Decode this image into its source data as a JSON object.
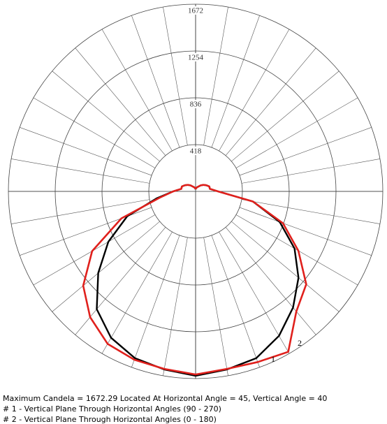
{
  "chart_data": {
    "type": "polar",
    "angles": [
      -180,
      -170,
      -160,
      -150,
      -140,
      -130,
      -120,
      -110,
      -100,
      -90,
      -80,
      -70,
      -60,
      -50,
      -40,
      -30,
      -20,
      -10,
      0,
      10,
      20,
      30,
      40,
      50,
      60,
      70,
      80,
      90,
      100,
      110,
      120,
      130,
      140,
      150,
      160,
      170,
      180
    ],
    "rlim": [
      0,
      1672
    ],
    "rticks": [
      418,
      836,
      1254,
      1672
    ],
    "series": [
      {
        "name": "1",
        "color": "#000000",
        "values": [
          20,
          30,
          40,
          50,
          70,
          90,
          110,
          130,
          130,
          200,
          350,
          650,
          900,
          1135,
          1373,
          1510,
          1585,
          1615,
          1647,
          1615,
          1585,
          1490,
          1354,
          1200,
          1020,
          800,
          520,
          200,
          130,
          130,
          110,
          90,
          70,
          50,
          40,
          30,
          20
        ]
      },
      {
        "name": "2",
        "color": "#e0201c",
        "values": [
          20,
          30,
          40,
          50,
          70,
          90,
          110,
          130,
          130,
          200,
          325,
          705,
          1067,
          1310,
          1466,
          1572,
          1600,
          1610,
          1635,
          1610,
          1622,
          1655,
          1400,
          1290,
          1060,
          830,
          520,
          200,
          130,
          130,
          110,
          90,
          70,
          50,
          40,
          30,
          20
        ]
      }
    ],
    "notes": [
      "Maximum Candela = 1672.29   Located At Horizontal Angle = 45, Vertical Angle = 40",
      "# 1 - Vertical Plane Through Horizontal Angles (90 - 270)",
      "# 2 - Vertical Plane Through Horizontal Angles (0 - 180)"
    ]
  }
}
